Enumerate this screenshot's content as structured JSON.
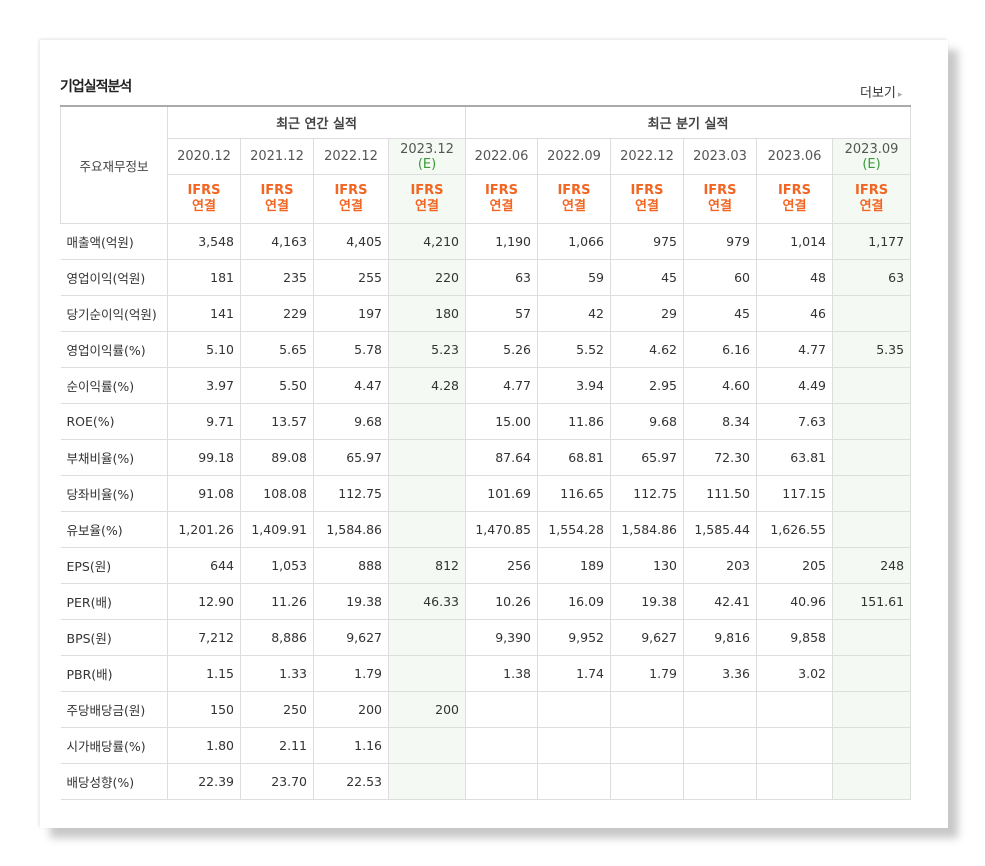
{
  "header": {
    "title": "기업실적분석",
    "more": "더보기"
  },
  "table": {
    "corner": "주요재무정보",
    "groups": [
      {
        "label": "최근 연간 실적",
        "span": 4
      },
      {
        "label": "최근 분기 실적",
        "span": 6
      }
    ],
    "columns": [
      {
        "period": "2020.12",
        "basis": "IFRS",
        "scope": "연결"
      },
      {
        "period": "2021.12",
        "basis": "IFRS",
        "scope": "연결"
      },
      {
        "period": "2022.12",
        "basis": "IFRS",
        "scope": "연결"
      },
      {
        "period": "2023.12",
        "note": "(E)",
        "basis": "IFRS",
        "scope": "연결"
      },
      {
        "period": "2022.06",
        "basis": "IFRS",
        "scope": "연결"
      },
      {
        "period": "2022.09",
        "basis": "IFRS",
        "scope": "연결"
      },
      {
        "period": "2022.12",
        "basis": "IFRS",
        "scope": "연결"
      },
      {
        "period": "2023.03",
        "basis": "IFRS",
        "scope": "연결"
      },
      {
        "period": "2023.06",
        "basis": "IFRS",
        "scope": "연결"
      },
      {
        "period": "2023.09",
        "note": "(E)",
        "basis": "IFRS",
        "scope": "연결"
      }
    ],
    "rows": [
      {
        "label": "매출액(억원)",
        "values": [
          "3,548",
          "4,163",
          "4,405",
          "4,210",
          "1,190",
          "1,066",
          "975",
          "979",
          "1,014",
          "1,177"
        ]
      },
      {
        "label": "영업이익(억원)",
        "values": [
          "181",
          "235",
          "255",
          "220",
          "63",
          "59",
          "45",
          "60",
          "48",
          "63"
        ]
      },
      {
        "label": "당기순이익(억원)",
        "values": [
          "141",
          "229",
          "197",
          "180",
          "57",
          "42",
          "29",
          "45",
          "46",
          null
        ]
      },
      {
        "label": "영업이익률(%)",
        "values": [
          "5.10",
          "5.65",
          "5.78",
          "5.23",
          "5.26",
          "5.52",
          "4.62",
          "6.16",
          "4.77",
          "5.35"
        ]
      },
      {
        "label": "순이익률(%)",
        "values": [
          "3.97",
          "5.50",
          "4.47",
          "4.28",
          "4.77",
          "3.94",
          "2.95",
          "4.60",
          "4.49",
          null
        ]
      },
      {
        "label": "ROE(%)",
        "values": [
          "9.71",
          "13.57",
          "9.68",
          null,
          "15.00",
          "11.86",
          "9.68",
          "8.34",
          "7.63",
          null
        ]
      },
      {
        "label": "부채비율(%)",
        "values": [
          "99.18",
          "89.08",
          "65.97",
          null,
          "87.64",
          "68.81",
          "65.97",
          "72.30",
          "63.81",
          null
        ]
      },
      {
        "label": "당좌비율(%)",
        "values": [
          "91.08",
          "108.08",
          "112.75",
          null,
          "101.69",
          "116.65",
          "112.75",
          "111.50",
          "117.15",
          null
        ]
      },
      {
        "label": "유보율(%)",
        "values": [
          "1,201.26",
          "1,409.91",
          "1,584.86",
          null,
          "1,470.85",
          "1,554.28",
          "1,584.86",
          "1,585.44",
          "1,626.55",
          null
        ]
      },
      {
        "label": "EPS(원)",
        "values": [
          "644",
          "1,053",
          "888",
          "812",
          "256",
          "189",
          "130",
          "203",
          "205",
          "248"
        ]
      },
      {
        "label": "PER(배)",
        "values": [
          "12.90",
          "11.26",
          "19.38",
          "46.33",
          "10.26",
          "16.09",
          "19.38",
          "42.41",
          "40.96",
          "151.61"
        ]
      },
      {
        "label": "BPS(원)",
        "values": [
          "7,212",
          "8,886",
          "9,627",
          null,
          "9,390",
          "9,952",
          "9,627",
          "9,816",
          "9,858",
          null
        ]
      },
      {
        "label": "PBR(배)",
        "values": [
          "1.15",
          "1.33",
          "1.79",
          null,
          "1.38",
          "1.74",
          "1.79",
          "3.36",
          "3.02",
          null
        ]
      },
      {
        "label": "주당배당금(원)",
        "values": [
          "150",
          "250",
          "200",
          "200",
          null,
          null,
          null,
          null,
          null,
          null
        ]
      },
      {
        "label": "시가배당률(%)",
        "values": [
          "1.80",
          "2.11",
          "1.16",
          null,
          null,
          null,
          null,
          null,
          null,
          null
        ]
      },
      {
        "label": "배당성향(%)",
        "values": [
          "22.39",
          "23.70",
          "22.53",
          null,
          null,
          null,
          null,
          null,
          null,
          null
        ]
      }
    ]
  }
}
